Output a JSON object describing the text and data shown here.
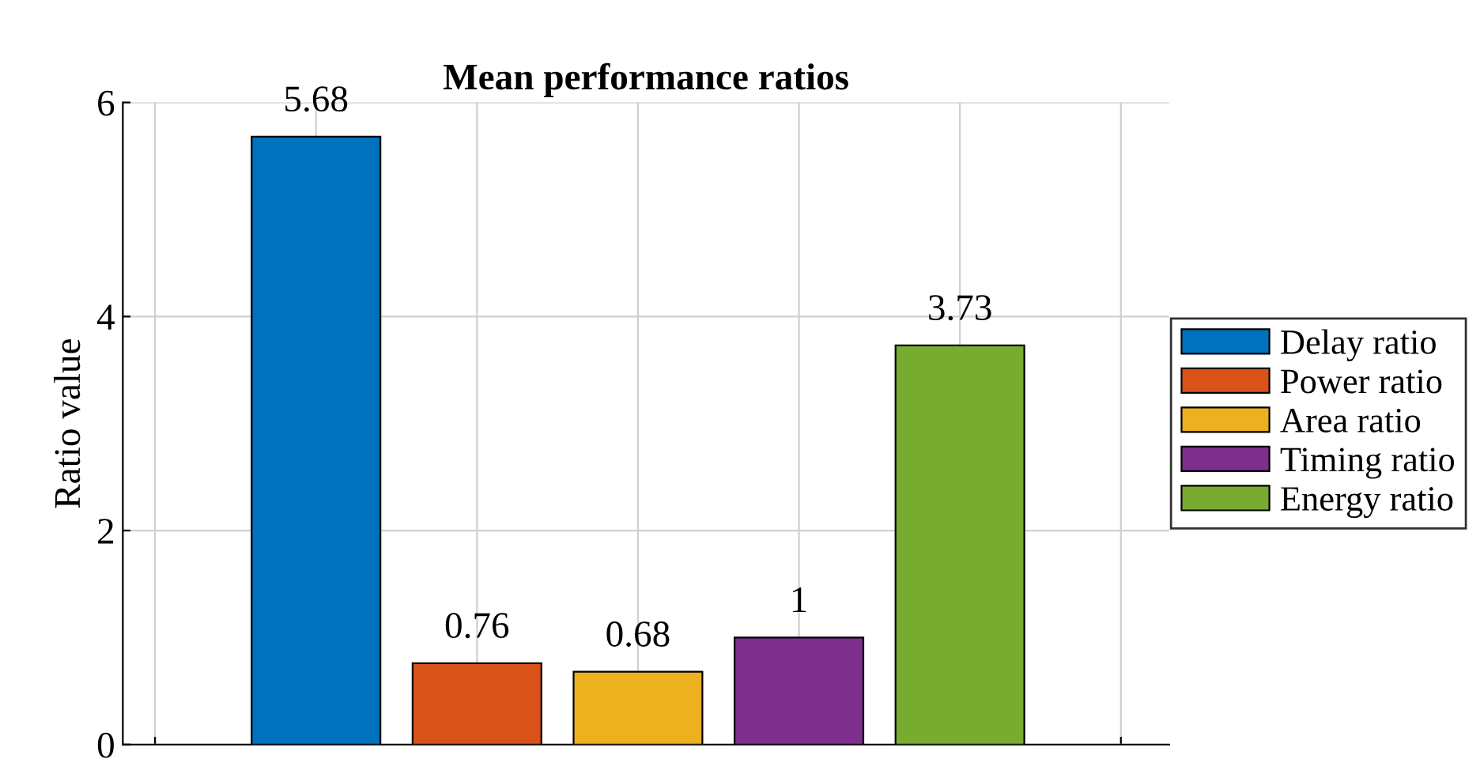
{
  "chart_data": {
    "type": "bar",
    "title": "Mean performance ratios",
    "ylabel": "Ratio value",
    "categories": [
      null,
      null,
      null,
      null,
      null
    ],
    "series": [
      {
        "name": "Delay ratio",
        "color": "#0072bd",
        "values": [
          5.68,
          null,
          null,
          null,
          null
        ]
      },
      {
        "name": "Power ratio",
        "color": "#d95319",
        "values": [
          null,
          0.76,
          null,
          null,
          null
        ]
      },
      {
        "name": "Area ratio",
        "color": "#edb120",
        "values": [
          null,
          null,
          0.68,
          null,
          null
        ]
      },
      {
        "name": "Timing ratio",
        "color": "#7e2f8e",
        "values": [
          null,
          null,
          null,
          1,
          null
        ]
      },
      {
        "name": "Energy ratio",
        "color": "#77ac30",
        "values": [
          null,
          null,
          null,
          null,
          3.73
        ]
      }
    ],
    "ylim": [
      0,
      6
    ],
    "yticks": [
      0,
      2,
      4,
      6
    ],
    "tick_labels": "y",
    "grid": true,
    "legend": "right",
    "data_labels": true
  }
}
